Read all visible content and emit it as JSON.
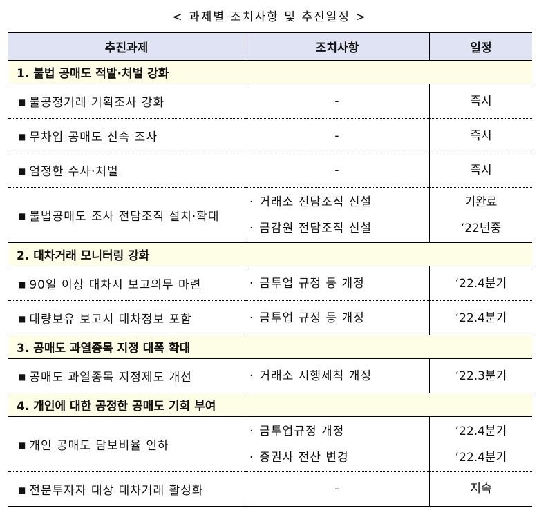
{
  "title": "< 과제별 조치사항 및 추진일정 >",
  "headers": [
    "추진과제",
    "조치사항",
    "일정"
  ],
  "bullet_icon": "■",
  "sub_bullet": "·",
  "sections": [
    {
      "title": "1. 불법 공매도 적발·처벌 강화",
      "items": [
        {
          "task": "불공정거래 기획조사 강화",
          "actions": [
            "-"
          ],
          "schedule": [
            "즉시"
          ]
        },
        {
          "task": "무차입 공매도 신속 조사",
          "actions": [
            "-"
          ],
          "schedule": [
            "즉시"
          ]
        },
        {
          "task": "엄정한 수사·처벌",
          "actions": [
            "-"
          ],
          "schedule": [
            "즉시"
          ]
        },
        {
          "task": "불법공매도 조사 전담조직 설치·확대",
          "actions": [
            "거래소 전담조직 신설",
            "금감원 전담조직 신설"
          ],
          "schedule": [
            "기완료",
            "‘22년중"
          ]
        }
      ]
    },
    {
      "title": "2. 대차거래 모니터링 강화",
      "items": [
        {
          "task": "90일 이상 대차시 보고의무 마련",
          "actions": [
            "금투업 규정 등 개정"
          ],
          "schedule": [
            "‘22.4분기"
          ]
        },
        {
          "task": "대량보유 보고시 대차정보 포함",
          "actions": [
            "금투업 규정 등 개정"
          ],
          "schedule": [
            "‘22.4분기"
          ]
        }
      ]
    },
    {
      "title": "3. 공매도 과열종목 지정 대폭 확대",
      "items": [
        {
          "task": "공매도 과열종목 지정제도 개선",
          "actions": [
            "거래소 시행세칙 개정"
          ],
          "schedule": [
            "‘22.3분기"
          ]
        }
      ]
    },
    {
      "title": "4. 개인에 대한 공정한 공매도 기회 부여",
      "items": [
        {
          "task": "개인 공매도 담보비율 인하",
          "actions": [
            "금투업규정 개정",
            "증권사 전산 변경"
          ],
          "schedule": [
            "‘22.4분기",
            "‘22.4분기"
          ]
        },
        {
          "task": "전문투자자 대상 대차거래 활성화",
          "actions": [
            "-"
          ],
          "schedule": [
            "지속"
          ]
        }
      ]
    }
  ]
}
